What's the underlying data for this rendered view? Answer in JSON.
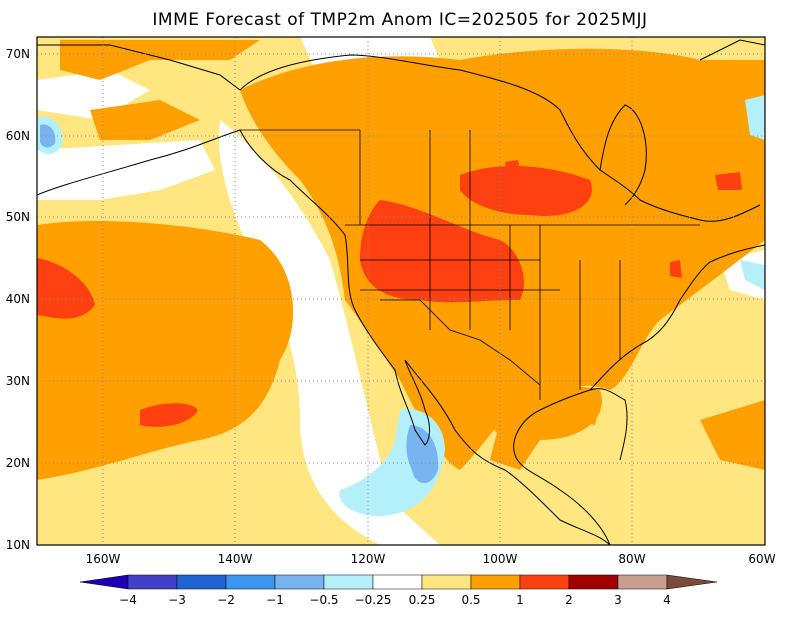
{
  "title": "IMME Forecast of TMP2m Anom IC=202505 for 2025MJJ",
  "lat_labels": [
    "70N",
    "60N",
    "50N",
    "40N",
    "30N",
    "20N",
    "10N"
  ],
  "lon_labels": [
    "160W",
    "140W",
    "120W",
    "100W",
    "80W",
    "60W"
  ],
  "map": {
    "lon_range": [
      -170,
      -60
    ],
    "lat_range": [
      10,
      72
    ],
    "grid": "dotted",
    "colors": {
      "ocean_neutral": "#ffffff",
      "lt_0_25": "#ffe680",
      "lt_0_5": "#ffe680",
      "lt_1": "#ffa000",
      "lt_2": "#ff4010",
      "neg_0_25": "#b4f0fa",
      "neg_0_5": "#78b4f0",
      "neg_1": "#3c8cf0"
    }
  },
  "colorbar": {
    "labels": [
      "−4",
      "−3",
      "−2",
      "−1",
      "−0.5",
      "−0.25",
      "0.25",
      "0.5",
      "1",
      "2",
      "3",
      "4"
    ],
    "colors": [
      "#1e00b4",
      "#4040c8",
      "#1e64d2",
      "#3c96f0",
      "#78b4f0",
      "#b4f0fa",
      "#ffffff",
      "#ffe680",
      "#ffa000",
      "#ff4010",
      "#a00000",
      "#c8a090",
      "#7a4a3a"
    ]
  }
}
